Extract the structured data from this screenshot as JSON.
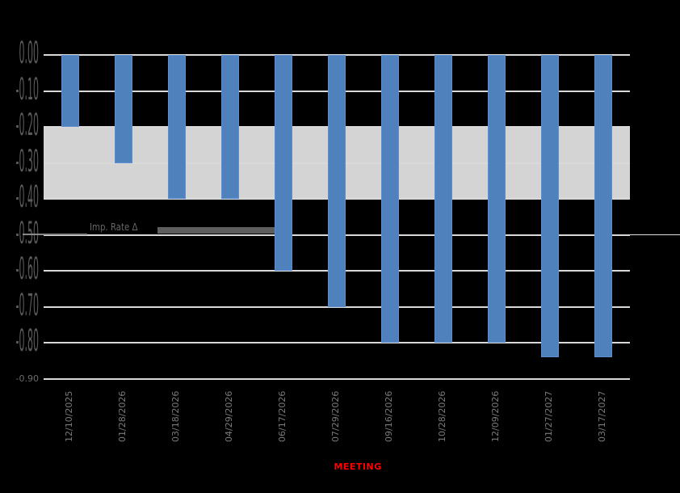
{
  "chart_data": {
    "type": "bar",
    "title": "",
    "xlabel": "MEETING",
    "ylabel": "",
    "ylim": [
      -0.9,
      0.0
    ],
    "grid": true,
    "legend": null,
    "categories": [
      "12/10/2025",
      "01/28/2026",
      "03/18/2026",
      "04/29/2026",
      "06/17/2026",
      "07/29/2026",
      "09/16/2026",
      "10/28/2026",
      "12/09/2026",
      "01/27/2027",
      "03/17/2027"
    ],
    "values": [
      -0.2,
      -0.3,
      -0.4,
      -0.4,
      -0.6,
      -0.7,
      -0.8,
      -0.8,
      -0.8,
      -0.84,
      -0.84
    ],
    "y_ticks": [
      "0.00",
      "-0.10",
      "-0.20",
      "-0.30",
      "-0.40",
      "-0.50",
      "-0.60",
      "-0.70",
      "-0.80",
      "-0.90"
    ],
    "shaded_band": {
      "from": -0.2,
      "to": -0.4,
      "color": "#d4d4d4"
    },
    "annotations": [
      {
        "text": "Imp. Rate Δ",
        "y": -0.5
      }
    ],
    "bar_color": "#4f81bd",
    "xlabel_color": "#ff0000"
  },
  "labels": {
    "xlabel": "MEETING",
    "annotation": "Imp. Rate Δ"
  }
}
